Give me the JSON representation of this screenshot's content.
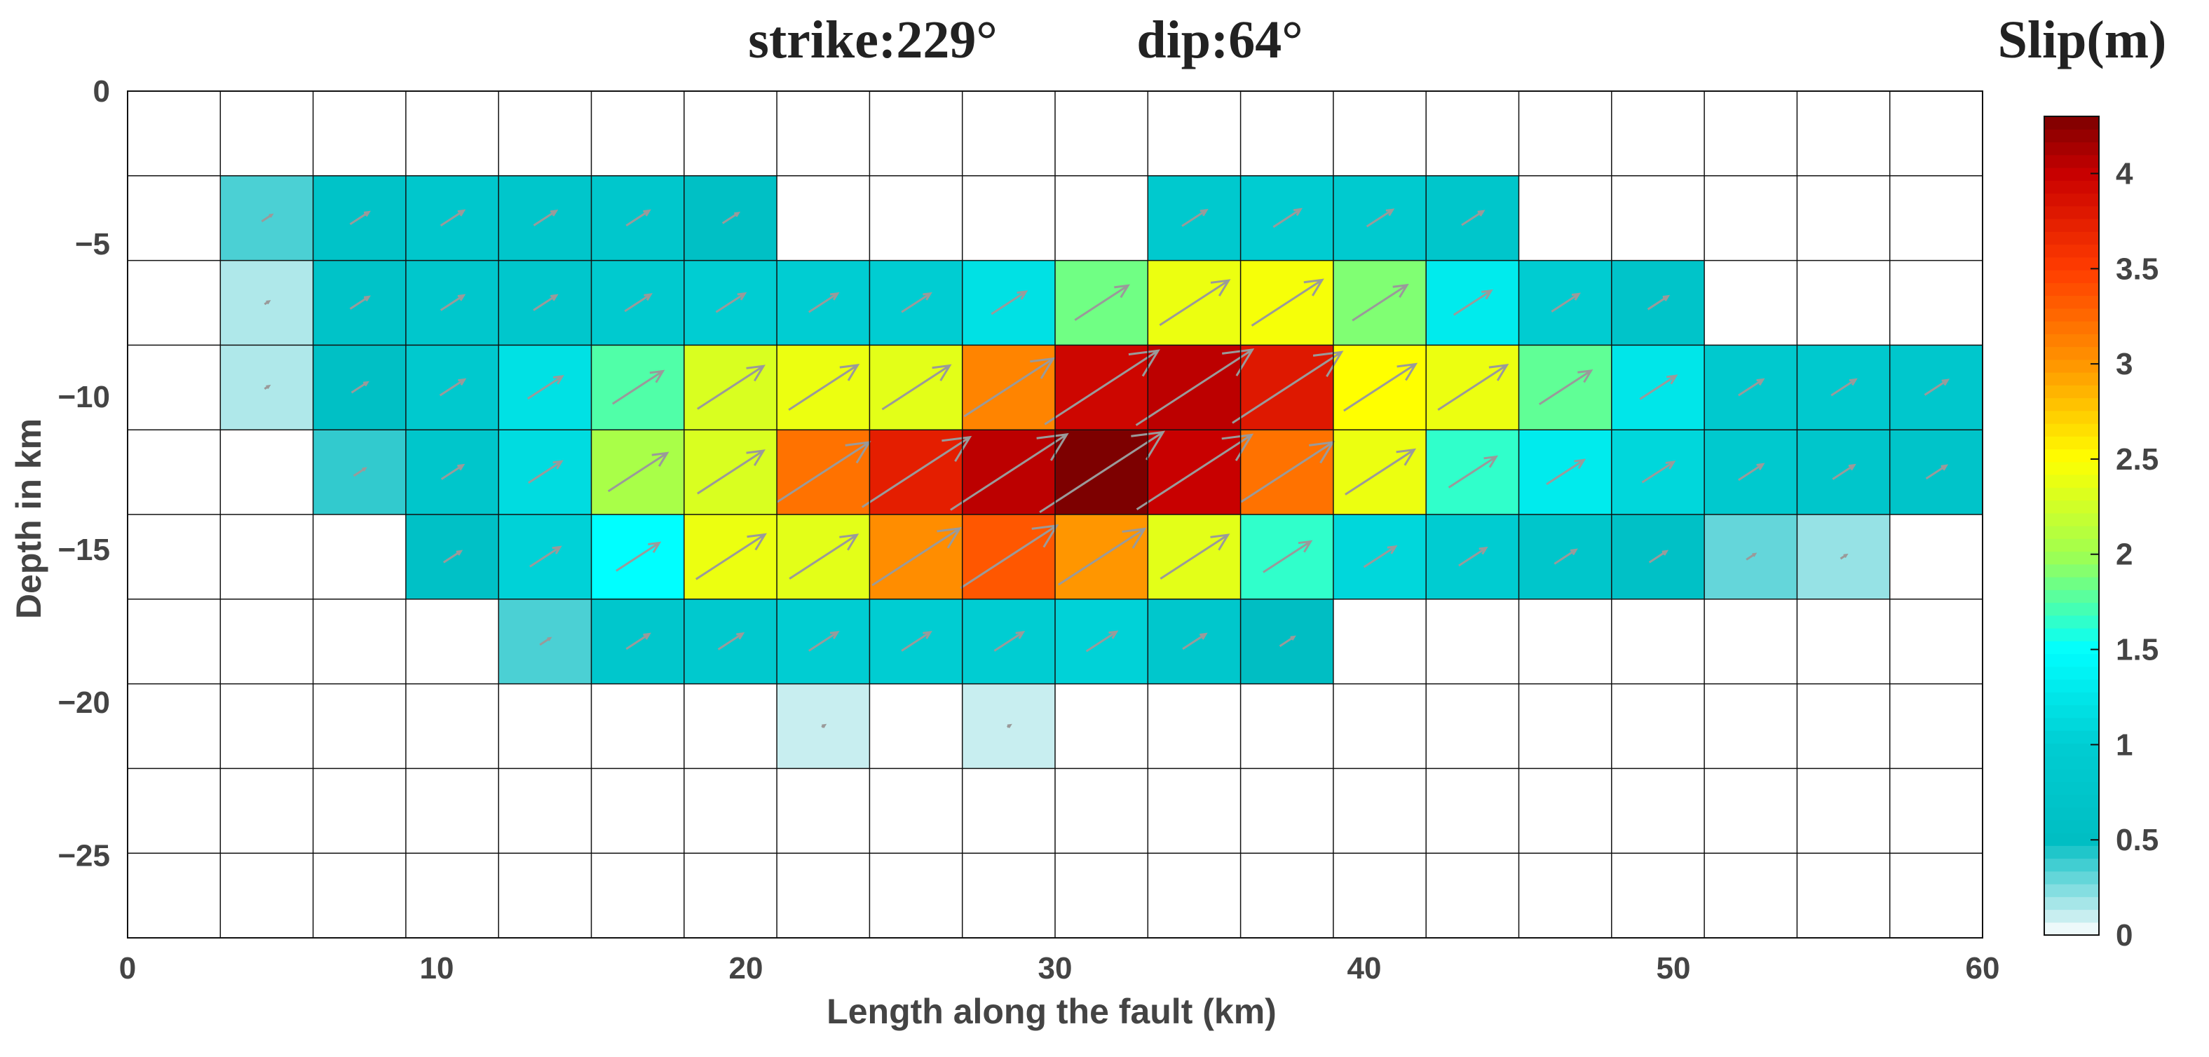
{
  "chart_data": {
    "type": "heatmap",
    "title_strike": "strike:229°",
    "title_dip": "dip:64°",
    "xlabel": "Length along the fault (km)",
    "ylabel": "Depth in km",
    "colorbar_label": "Slip(m)",
    "xlim": [
      0,
      60
    ],
    "ylim": [
      -27.7,
      0
    ],
    "x_ticks": [
      0,
      10,
      20,
      30,
      40,
      50,
      60
    ],
    "x_tick_labels": [
      "0",
      "10",
      "20",
      "30",
      "40",
      "50",
      "60"
    ],
    "y_ticks": [
      0,
      -5,
      -10,
      -15,
      -20,
      -25
    ],
    "y_tick_labels": [
      "0",
      "−5",
      "−10",
      "−15",
      "−20",
      "−25"
    ],
    "colorbar_ticks": [
      0,
      0.5,
      1,
      1.5,
      2,
      2.5,
      3,
      3.5,
      4
    ],
    "colorbar_tick_labels": [
      "0",
      "0.5",
      "1",
      "1.5",
      "2",
      "2.5",
      "3",
      "3.5",
      "4"
    ],
    "colorbar_range": [
      0,
      4.3
    ],
    "grid": true,
    "patch_columns": 20,
    "patch_rows": 10,
    "patch_length_km": 3.0,
    "patch_width_km": 2.77,
    "slip": [
      [
        0,
        0,
        0,
        0,
        0,
        0,
        0,
        0,
        0,
        0,
        0,
        0,
        0,
        0,
        0,
        0,
        0,
        0,
        0,
        0
      ],
      [
        0,
        0.35,
        0.65,
        0.8,
        0.78,
        0.8,
        0.55,
        0,
        0,
        0,
        0,
        0.85,
        0.95,
        0.9,
        0.75,
        0,
        0,
        0,
        0,
        0
      ],
      [
        0,
        0.15,
        0.65,
        0.8,
        0.8,
        0.9,
        1.0,
        1.0,
        1.0,
        1.2,
        1.85,
        2.4,
        2.45,
        1.9,
        1.3,
        0.95,
        0.7,
        0,
        0,
        0
      ],
      [
        0,
        0.15,
        0.55,
        0.85,
        1.2,
        1.75,
        2.3,
        2.4,
        2.35,
        3.1,
        3.95,
        4.05,
        3.8,
        2.5,
        2.4,
        1.8,
        1.25,
        0.85,
        0.85,
        0.8
      ],
      [
        0,
        0,
        0.4,
        0.75,
        1.15,
        2.05,
        2.3,
        3.2,
        3.75,
        4.05,
        4.3,
        4.0,
        3.2,
        2.4,
        1.65,
        1.3,
        1.1,
        0.85,
        0.75,
        0.7
      ],
      [
        0,
        0,
        0,
        0.6,
        1.05,
        1.5,
        2.4,
        2.35,
        3.05,
        3.35,
        3.0,
        2.35,
        1.65,
        1.1,
        0.95,
        0.75,
        0.6,
        0.3,
        0.2,
        0
      ],
      [
        0,
        0,
        0,
        0,
        0.35,
        0.8,
        0.85,
        1.0,
        1.0,
        1.0,
        1.05,
        0.8,
        0.5,
        0,
        0,
        0,
        0,
        0,
        0,
        0
      ],
      [
        0,
        0,
        0,
        0,
        0,
        0,
        0,
        0.1,
        0,
        0.1,
        0,
        0,
        0,
        0,
        0,
        0,
        0,
        0,
        0,
        0
      ],
      [
        0,
        0,
        0,
        0,
        0,
        0,
        0,
        0,
        0,
        0,
        0,
        0,
        0,
        0,
        0,
        0,
        0,
        0,
        0,
        0
      ],
      [
        0,
        0,
        0,
        0,
        0,
        0,
        0,
        0,
        0,
        0,
        0,
        0,
        0,
        0,
        0,
        0,
        0,
        0,
        0,
        0
      ]
    ],
    "rake_deg": 33,
    "arrow_color": "#9a9a9a",
    "colormap": "white-to-cyan-to-yellow-to-darkred"
  }
}
